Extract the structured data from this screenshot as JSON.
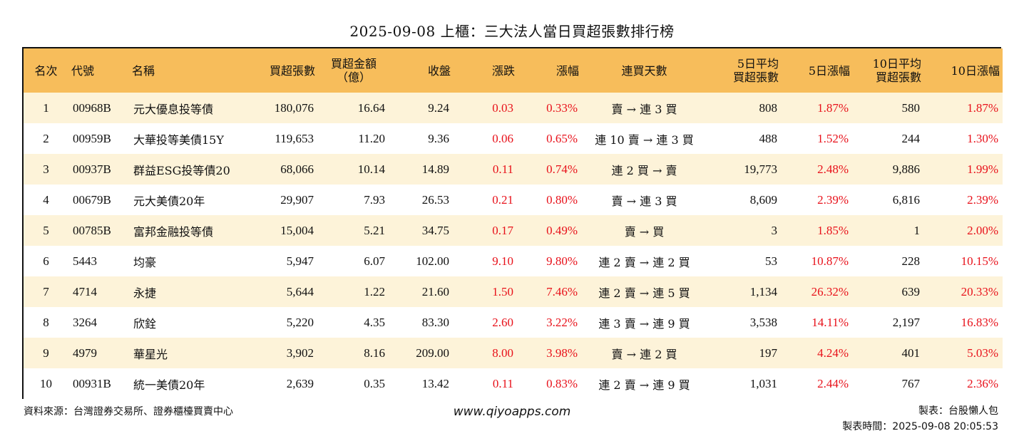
{
  "title": "2025-09-08 上櫃：三大法人當日買超張數排行榜",
  "headers": {
    "rank": "名次",
    "code": "代號",
    "name": "名稱",
    "buy_lots": "買超張數",
    "buy_amount_1": "買超金額",
    "buy_amount_2": "（億）",
    "close": "收盤",
    "change": "漲跌",
    "pct": "漲幅",
    "streak": "連買天數",
    "avg5_1": "5日平均",
    "avg5_2": "買超張數",
    "pct5": "5日漲幅",
    "avg10_1": "10日平均",
    "avg10_2": "買超張數",
    "pct10": "10日漲幅"
  },
  "rows": [
    {
      "rank": "1",
      "code": "00968B",
      "name": "元大優息投等債",
      "buy_lots": "180,076",
      "amount": "16.64",
      "close": "9.24",
      "change": "0.03",
      "pct": "0.33%",
      "streak": "賣 → 連 3 買",
      "avg5": "808",
      "pct5": "1.87%",
      "avg10": "580",
      "pct10": "1.87%"
    },
    {
      "rank": "2",
      "code": "00959B",
      "name": "大華投等美債15Y",
      "buy_lots": "119,653",
      "amount": "11.20",
      "close": "9.36",
      "change": "0.06",
      "pct": "0.65%",
      "streak": "連 10 賣 → 連 3 買",
      "avg5": "488",
      "pct5": "1.52%",
      "avg10": "244",
      "pct10": "1.30%"
    },
    {
      "rank": "3",
      "code": "00937B",
      "name": "群益ESG投等債20",
      "buy_lots": "68,066",
      "amount": "10.14",
      "close": "14.89",
      "change": "0.11",
      "pct": "0.74%",
      "streak": "連 2 買 → 賣",
      "avg5": "19,773",
      "pct5": "2.48%",
      "avg10": "9,886",
      "pct10": "1.99%"
    },
    {
      "rank": "4",
      "code": "00679B",
      "name": "元大美債20年",
      "buy_lots": "29,907",
      "amount": "7.93",
      "close": "26.53",
      "change": "0.21",
      "pct": "0.80%",
      "streak": "賣 → 連 3 買",
      "avg5": "8,609",
      "pct5": "2.39%",
      "avg10": "6,816",
      "pct10": "2.39%"
    },
    {
      "rank": "5",
      "code": "00785B",
      "name": "富邦金融投等債",
      "buy_lots": "15,004",
      "amount": "5.21",
      "close": "34.75",
      "change": "0.17",
      "pct": "0.49%",
      "streak": "賣 → 買",
      "avg5": "3",
      "pct5": "1.85%",
      "avg10": "1",
      "pct10": "2.00%"
    },
    {
      "rank": "6",
      "code": "5443",
      "name": "均豪",
      "buy_lots": "5,947",
      "amount": "6.07",
      "close": "102.00",
      "change": "9.10",
      "pct": "9.80%",
      "streak": "連 2 賣 → 連 2 買",
      "avg5": "53",
      "pct5": "10.87%",
      "avg10": "228",
      "pct10": "10.15%"
    },
    {
      "rank": "7",
      "code": "4714",
      "name": "永捷",
      "buy_lots": "5,644",
      "amount": "1.22",
      "close": "21.60",
      "change": "1.50",
      "pct": "7.46%",
      "streak": "連 2 賣 → 連 5 買",
      "avg5": "1,134",
      "pct5": "26.32%",
      "avg10": "639",
      "pct10": "20.33%"
    },
    {
      "rank": "8",
      "code": "3264",
      "name": "欣銓",
      "buy_lots": "5,220",
      "amount": "4.35",
      "close": "83.30",
      "change": "2.60",
      "pct": "3.22%",
      "streak": "連 3 賣 → 連 9 買",
      "avg5": "3,538",
      "pct5": "14.11%",
      "avg10": "2,197",
      "pct10": "16.83%"
    },
    {
      "rank": "9",
      "code": "4979",
      "name": "華星光",
      "buy_lots": "3,902",
      "amount": "8.16",
      "close": "209.00",
      "change": "8.00",
      "pct": "3.98%",
      "streak": "賣 → 連 2 買",
      "avg5": "197",
      "pct5": "4.24%",
      "avg10": "401",
      "pct10": "5.03%"
    },
    {
      "rank": "10",
      "code": "00931B",
      "name": "統一美債20年",
      "buy_lots": "2,639",
      "amount": "0.35",
      "close": "13.42",
      "change": "0.11",
      "pct": "0.83%",
      "streak": "連 2 賣 → 連 9 買",
      "avg5": "1,031",
      "pct5": "2.44%",
      "avg10": "767",
      "pct10": "2.36%"
    }
  ],
  "footer": {
    "source": "資料來源：台灣證券交易所、證券櫃檯買賣中心",
    "website": "www.qiyoapps.com",
    "maker": "製表：台股懶人包",
    "time": "製表時間：2025-09-08 20:05:53"
  },
  "colors": {
    "header_bg": "#f7bd5b",
    "stripe_bg": "#fdf3d9",
    "positive": "#e8111a"
  }
}
